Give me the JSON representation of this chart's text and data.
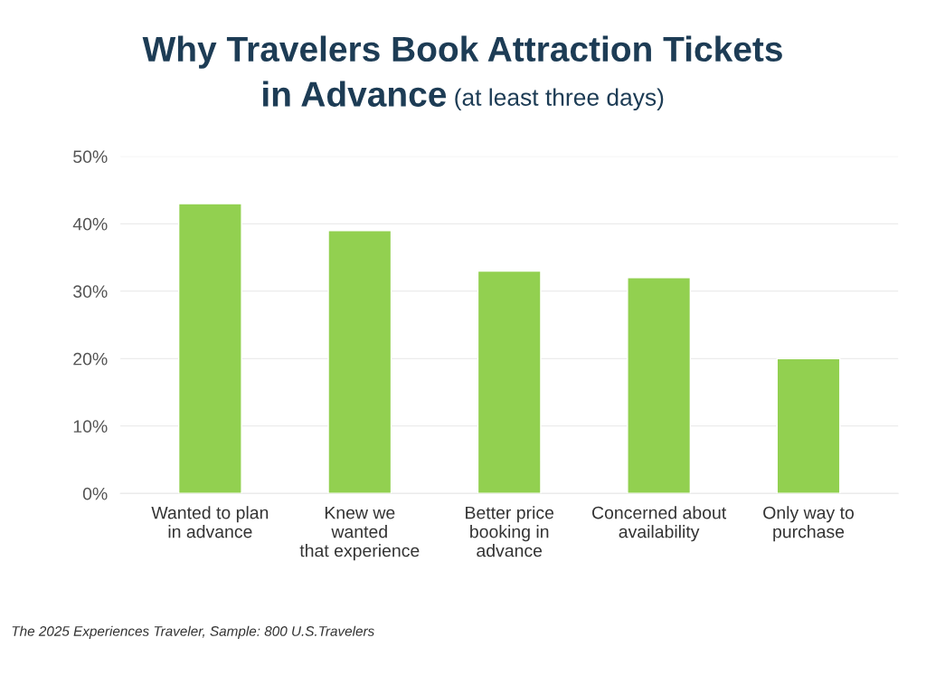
{
  "chart_data": {
    "type": "bar",
    "title": "Why Travelers Book Attraction Tickets\nin Advance",
    "subtitle": "(at least three days)",
    "categories": [
      "Wanted to plan\nin advance",
      "Knew we\nwanted\nthat experience",
      "Better price\nbooking in\nadvance",
      "Concerned about\navailability",
      "Only way to\npurchase"
    ],
    "values": [
      43,
      39,
      33,
      32,
      20
    ],
    "color": "#92d050",
    "ylim": [
      0,
      50
    ],
    "yticks": [
      {
        "value": 0,
        "label": "0%"
      },
      {
        "value": 10,
        "label": "10%"
      },
      {
        "value": 20,
        "label": "20%"
      },
      {
        "value": 30,
        "label": "30%"
      },
      {
        "value": 40,
        "label": "40%"
      },
      {
        "value": 50,
        "label": "50%"
      }
    ],
    "grid": "y",
    "annotations": [
      "The 2025 Experiences Traveler, Sample: 800 U.S.Travelers"
    ]
  }
}
